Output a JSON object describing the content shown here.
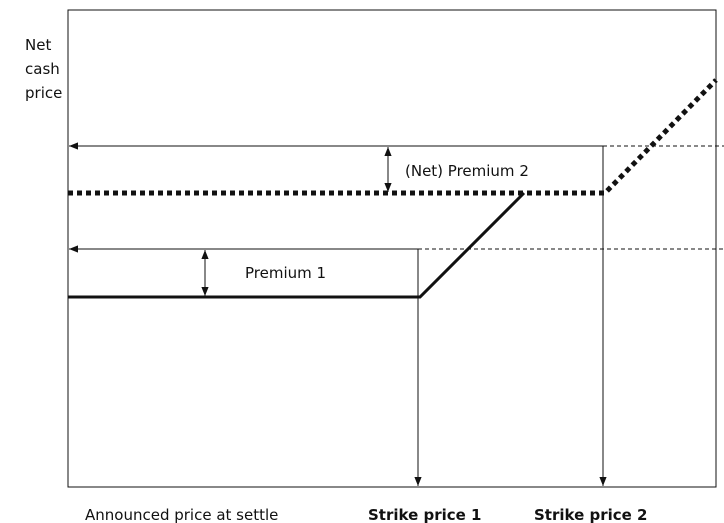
{
  "axis": {
    "y_label": "Net cash price",
    "x_label": "Announced price at settle"
  },
  "labels": {
    "premium_2": "(Net) Premium 2",
    "premium_1": "Premium 1",
    "strike_1": "Strike price 1",
    "strike_2": "Strike price 2"
  }
}
